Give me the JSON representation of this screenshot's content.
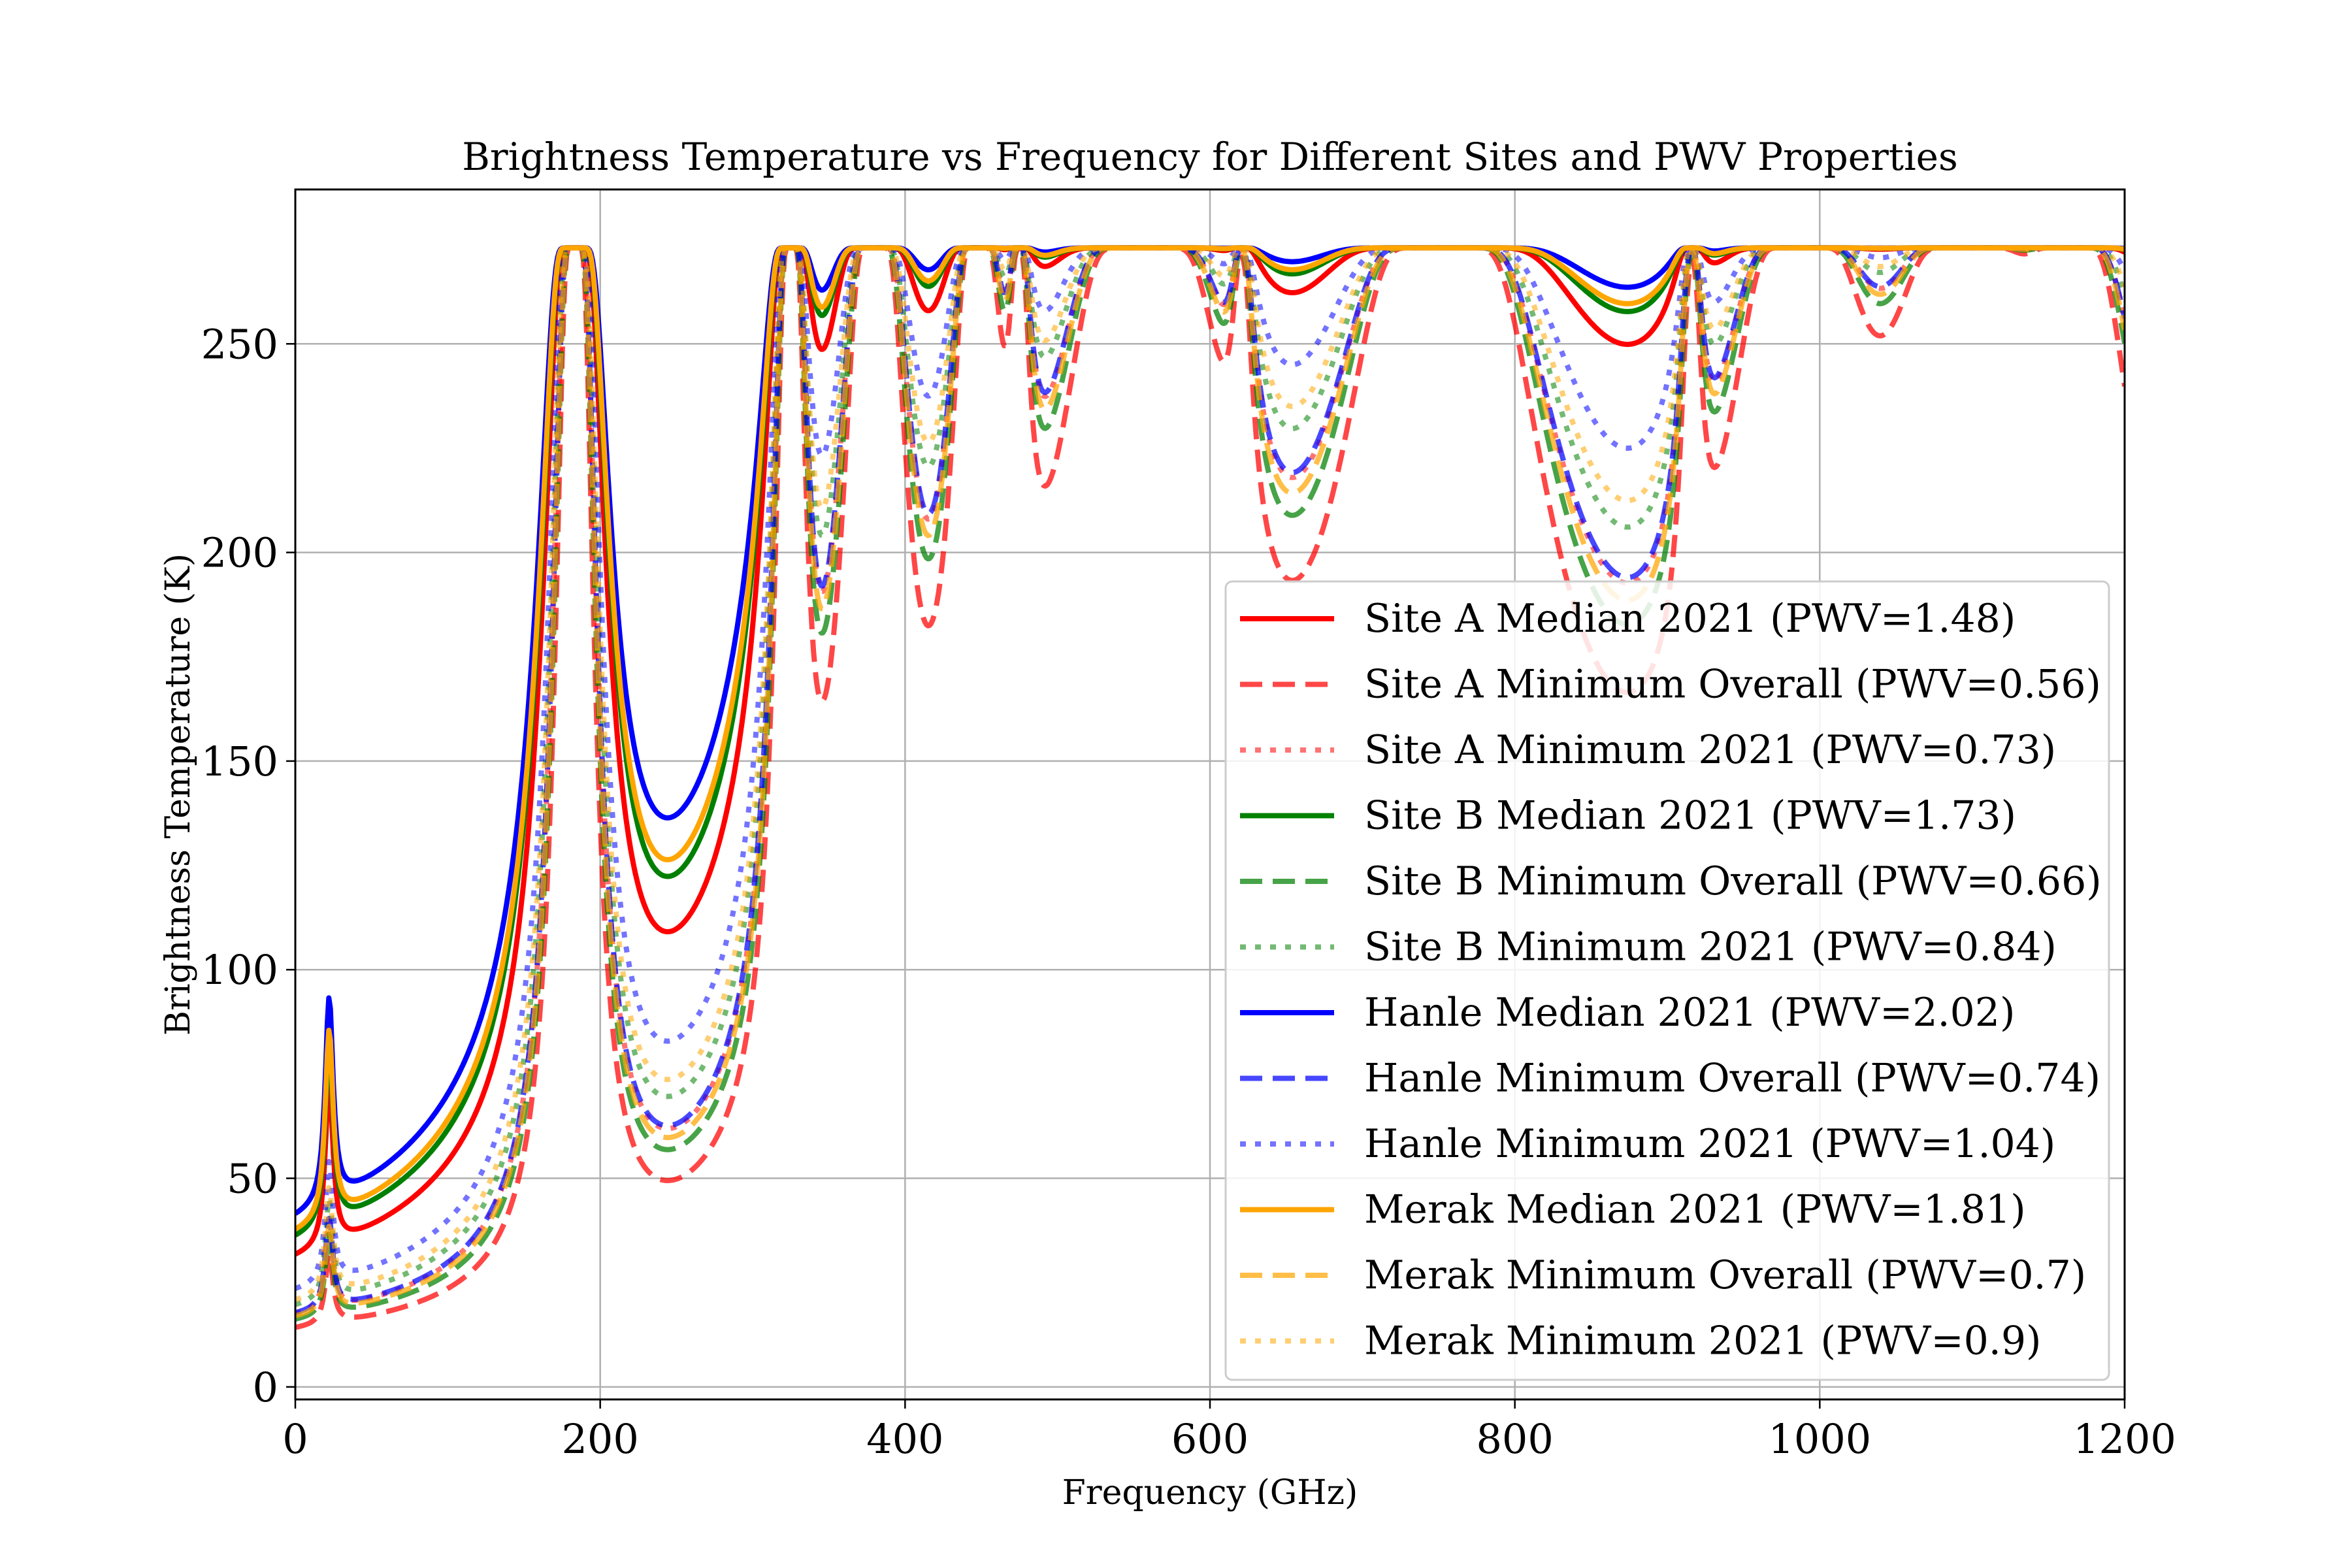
{
  "chart_data": {
    "type": "line",
    "title": "Brightness Temperature vs Frequency for Different Sites and PWV Properties",
    "xlabel": "Frequency (GHz)",
    "ylabel": "Brightness Temperature (K)",
    "xlim": [
      0,
      1200
    ],
    "ylim": [
      -3,
      287
    ],
    "xticks": [
      0,
      200,
      400,
      600,
      800,
      1000,
      1200
    ],
    "yticks": [
      0,
      50,
      100,
      150,
      200,
      250
    ],
    "grid": true,
    "legend_position": "lower-right",
    "series": [
      {
        "name": "Site A Median 2021 (PWV=1.48)",
        "color": "#ff0000",
        "style": "solid",
        "pwv": 1.48
      },
      {
        "name": "Site A Minimum Overall (PWV=0.56)",
        "color": "#ff0000",
        "style": "dashed",
        "pwv": 0.56
      },
      {
        "name": "Site A Minimum 2021 (PWV=0.73)",
        "color": "#ff0000",
        "style": "dotted",
        "pwv": 0.73
      },
      {
        "name": "Site B Median 2021 (PWV=1.73)",
        "color": "#008000",
        "style": "solid",
        "pwv": 1.73
      },
      {
        "name": "Site B Minimum Overall (PWV=0.66)",
        "color": "#008000",
        "style": "dashed",
        "pwv": 0.66
      },
      {
        "name": "Site B Minimum 2021 (PWV=0.84)",
        "color": "#008000",
        "style": "dotted",
        "pwv": 0.84
      },
      {
        "name": "Hanle Median 2021 (PWV=2.02)",
        "color": "#0000ff",
        "style": "solid",
        "pwv": 2.02
      },
      {
        "name": "Hanle Minimum Overall (PWV=0.74)",
        "color": "#0000ff",
        "style": "dashed",
        "pwv": 0.74
      },
      {
        "name": "Hanle Minimum 2021 (PWV=1.04)",
        "color": "#0000ff",
        "style": "dotted",
        "pwv": 1.04
      },
      {
        "name": "Merak Median 2021 (PWV=1.81)",
        "color": "#ffa500",
        "style": "solid",
        "pwv": 1.81
      },
      {
        "name": "Merak Minimum Overall (PWV=0.7)",
        "color": "#ffa500",
        "style": "dashed",
        "pwv": 0.7
      },
      {
        "name": "Merak Minimum 2021 (PWV=0.9)",
        "color": "#ffa500",
        "style": "dotted",
        "pwv": 0.9
      }
    ]
  }
}
